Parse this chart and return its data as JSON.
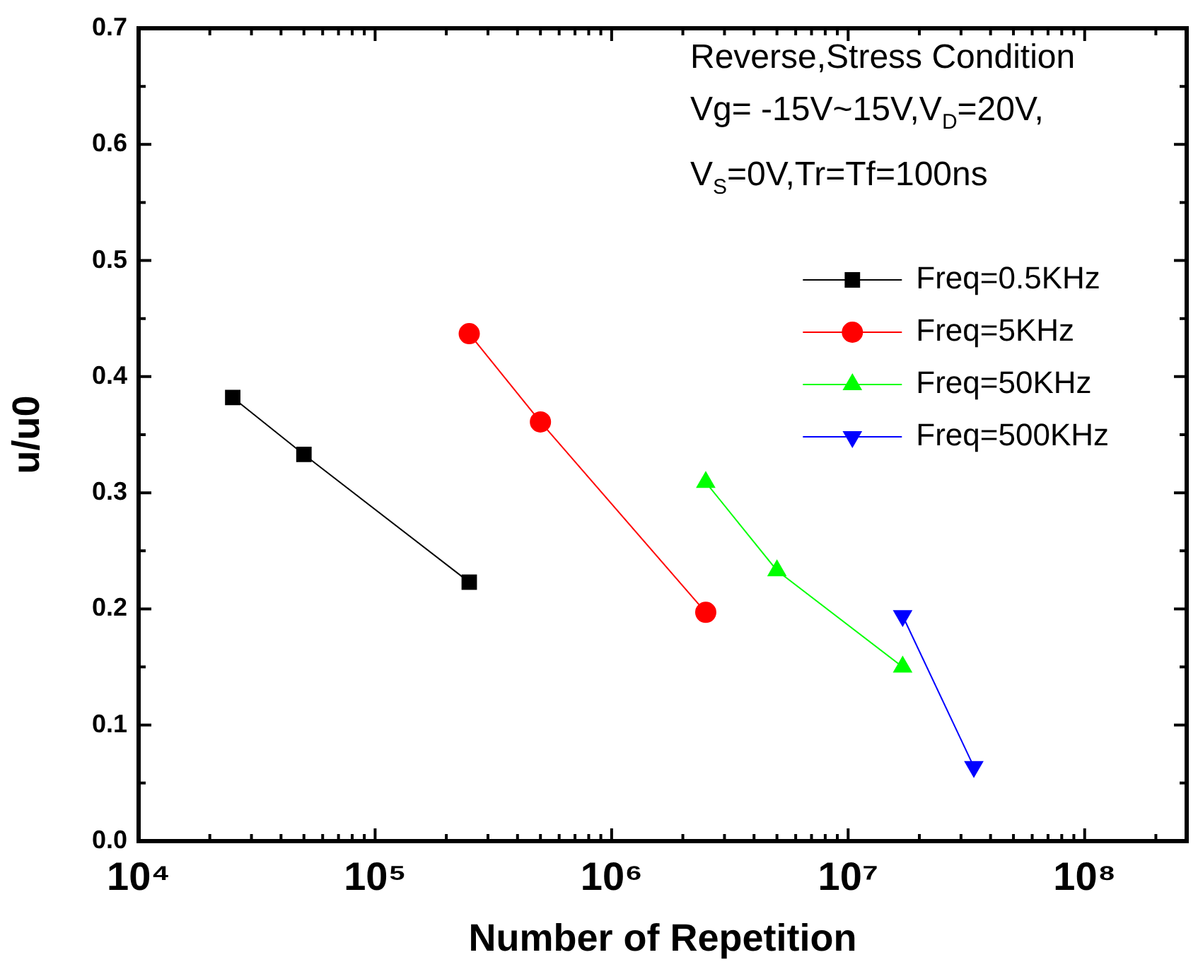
{
  "chart_data": {
    "type": "line",
    "xlabel": "Number of Repetition",
    "ylabel": "u/u0",
    "log": "x",
    "grid": false,
    "legend": "top right",
    "line_style": "solid",
    "xlim": [
      10000,
      270000000
    ],
    "xticks": [
      {
        "value": 10000,
        "label": "10⁴"
      },
      {
        "value": 20000,
        "label": null
      },
      {
        "value": 30000,
        "label": null
      },
      {
        "value": 40000,
        "label": null
      },
      {
        "value": 50000,
        "label": null
      },
      {
        "value": 60000,
        "label": null
      },
      {
        "value": 70000,
        "label": null
      },
      {
        "value": 80000,
        "label": null
      },
      {
        "value": 90000,
        "label": null
      },
      {
        "value": 100000,
        "label": "10⁵"
      },
      {
        "value": 200000,
        "label": null
      },
      {
        "value": 300000,
        "label": null
      },
      {
        "value": 400000,
        "label": null
      },
      {
        "value": 500000,
        "label": null
      },
      {
        "value": 600000,
        "label": null
      },
      {
        "value": 700000,
        "label": null
      },
      {
        "value": 800000,
        "label": null
      },
      {
        "value": 900000,
        "label": null
      },
      {
        "value": 1000000,
        "label": "10⁶"
      },
      {
        "value": 2000000,
        "label": null
      },
      {
        "value": 3000000,
        "label": null
      },
      {
        "value": 4000000,
        "label": null
      },
      {
        "value": 5000000,
        "label": null
      },
      {
        "value": 6000000,
        "label": null
      },
      {
        "value": 7000000,
        "label": null
      },
      {
        "value": 8000000,
        "label": null
      },
      {
        "value": 9000000,
        "label": null
      },
      {
        "value": 10000000,
        "label": "10⁷"
      },
      {
        "value": 20000000,
        "label": null
      },
      {
        "value": 30000000,
        "label": null
      },
      {
        "value": 40000000,
        "label": null
      },
      {
        "value": 50000000,
        "label": null
      },
      {
        "value": 60000000,
        "label": null
      },
      {
        "value": 70000000,
        "label": null
      },
      {
        "value": 80000000,
        "label": null
      },
      {
        "value": 90000000,
        "label": null
      },
      {
        "value": 100000000,
        "label": "10⁸"
      },
      {
        "value": 200000000,
        "label": null
      }
    ],
    "ylim": [
      0,
      0.7
    ],
    "yticks": [
      {
        "value": 0,
        "label": "0.0"
      },
      {
        "value": 0.05,
        "label": null
      },
      {
        "value": 0.1,
        "label": "0.1"
      },
      {
        "value": 0.15,
        "label": null
      },
      {
        "value": 0.2,
        "label": "0.2"
      },
      {
        "value": 0.25,
        "label": null
      },
      {
        "value": 0.3,
        "label": "0.3"
      },
      {
        "value": 0.35,
        "label": null
      },
      {
        "value": 0.4,
        "label": "0.4"
      },
      {
        "value": 0.45,
        "label": null
      },
      {
        "value": 0.5,
        "label": "0.5"
      },
      {
        "value": 0.55,
        "label": null
      },
      {
        "value": 0.6,
        "label": "0.6"
      },
      {
        "value": 0.65,
        "label": null
      },
      {
        "value": 0.7,
        "label": "0.7"
      }
    ],
    "annotations": [
      "Reverse,Stress Condition",
      "Vg= -15V~15V,V$_{D}$=20V,",
      "V$_{S}$=0V,Tr=Tf=100ns"
    ],
    "series": [
      {
        "name": "Freq=0.5KHz",
        "color": "#000000",
        "marker": "square",
        "x": [
          25000,
          50000,
          250000
        ],
        "values": [
          0.382,
          0.333,
          0.223
        ]
      },
      {
        "name": "Freq=5KHz",
        "color": "#ff0000",
        "marker": "circle",
        "x": [
          250000,
          500000,
          2500000
        ],
        "values": [
          0.437,
          0.361,
          0.197
        ]
      },
      {
        "name": "Freq=50KHz",
        "color": "#00ff00",
        "marker": "triangle",
        "x": [
          2500000,
          5000000,
          17000000
        ],
        "values": [
          0.309,
          0.233,
          0.15
        ]
      },
      {
        "name": "Freq=500KHz",
        "color": "#0000ff",
        "marker": "triangle-down",
        "x": [
          17000000,
          34000000
        ],
        "values": [
          0.194,
          0.064
        ]
      }
    ]
  }
}
